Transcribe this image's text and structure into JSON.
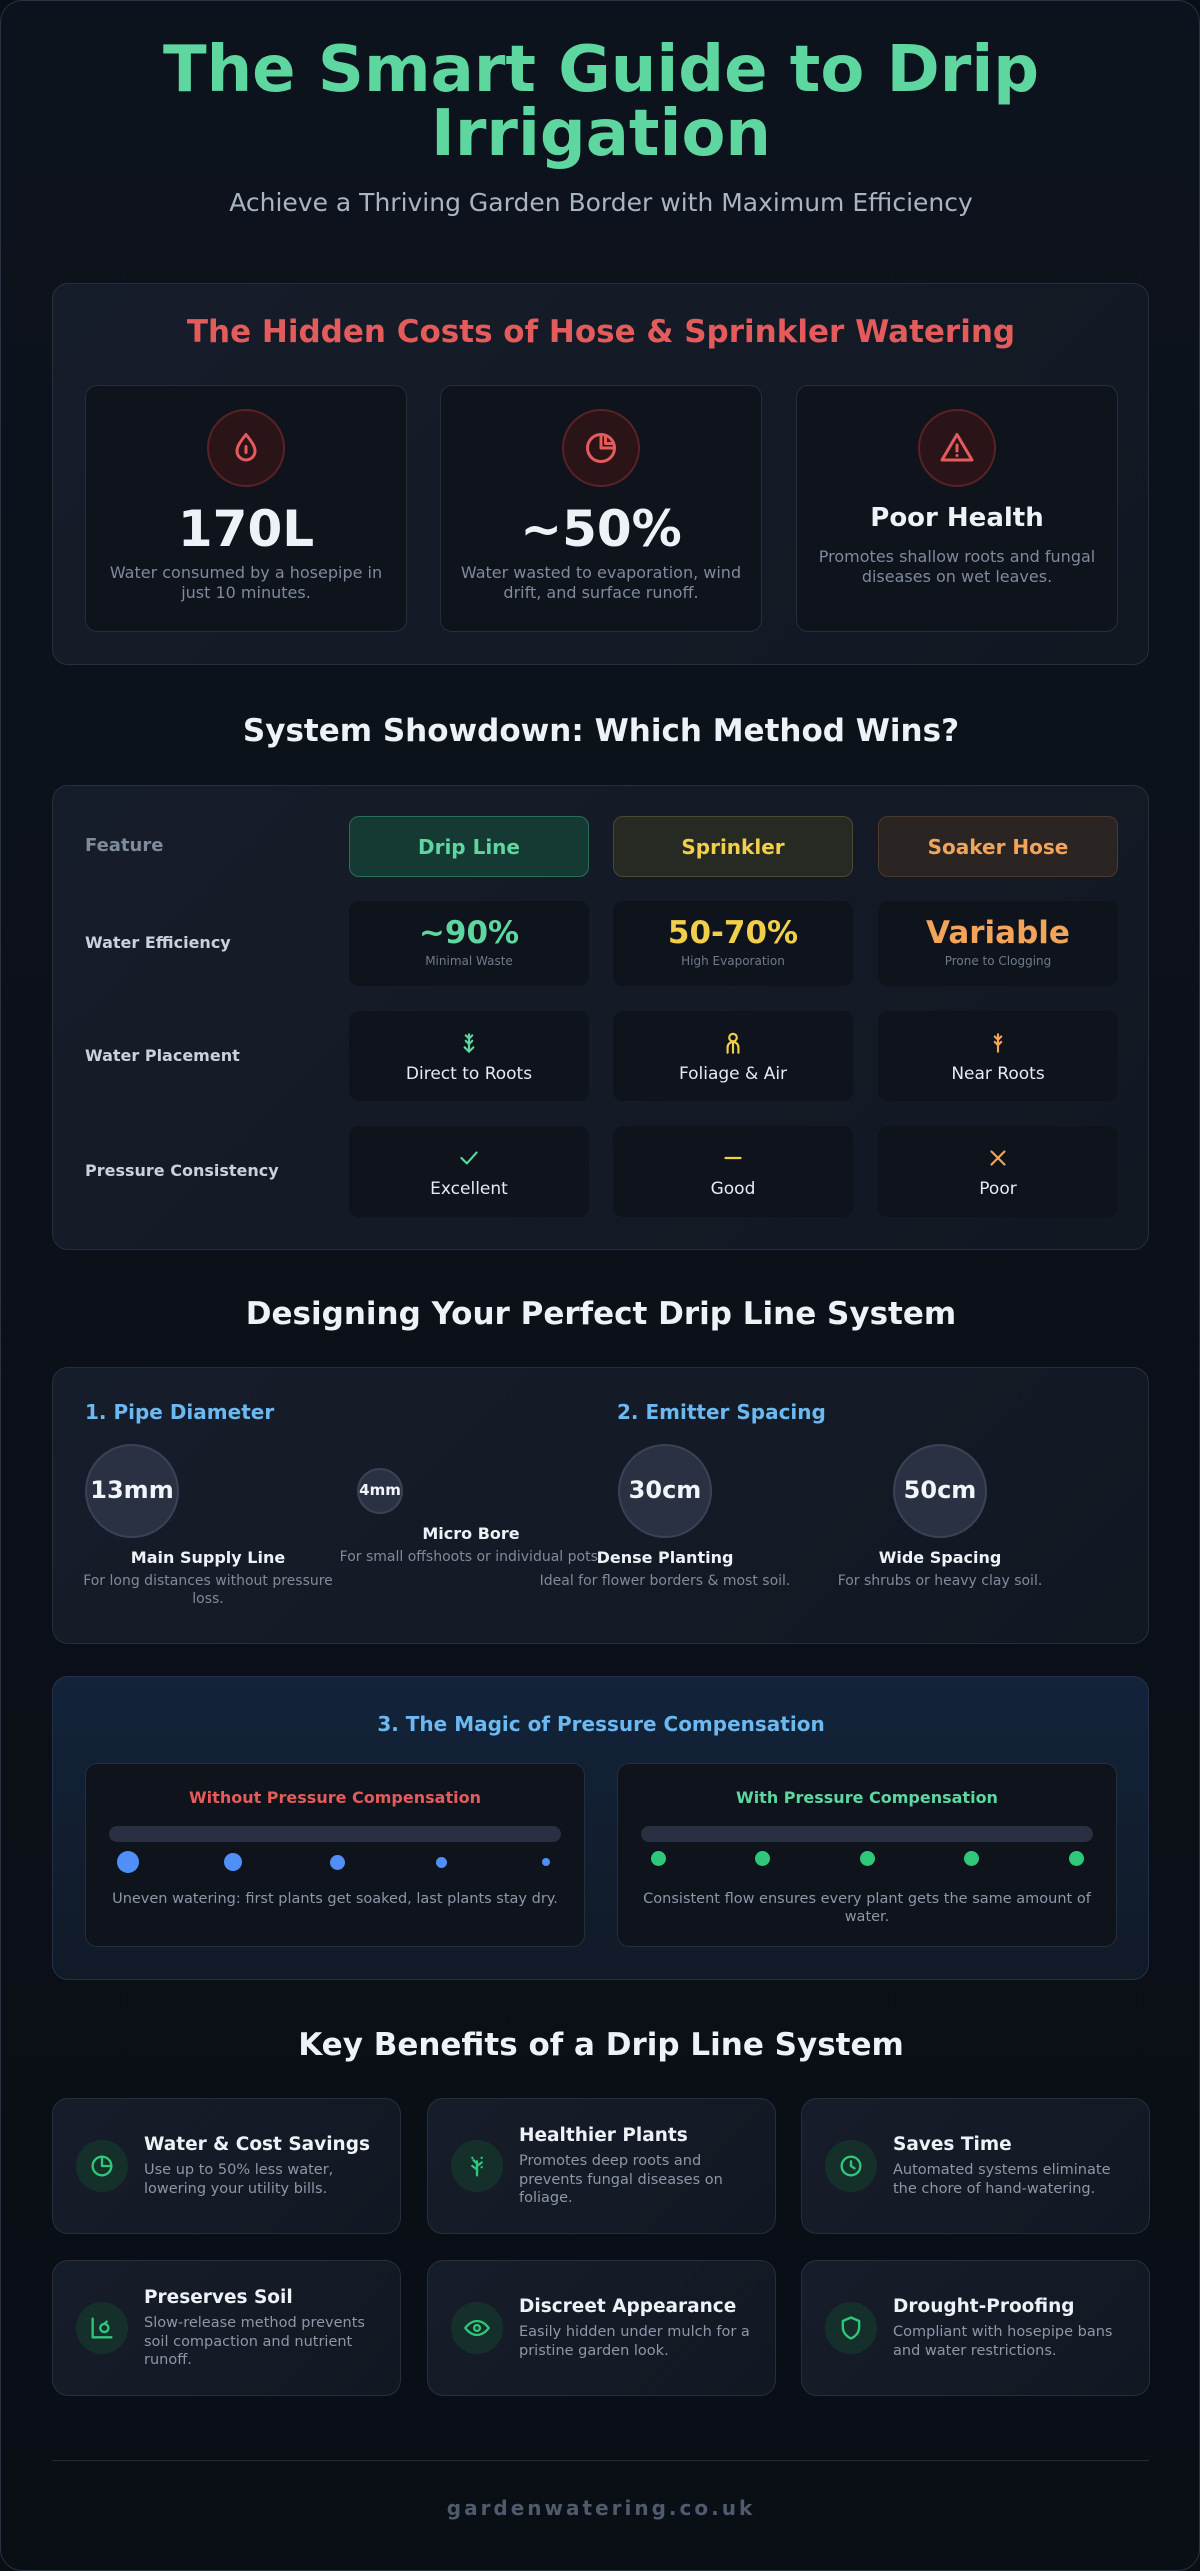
{
  "header": {
    "title": "The Smart Guide to Drip Irrigation",
    "subtitle": "Achieve a Thriving Garden Border with Maximum Efficiency"
  },
  "costs": {
    "title": "The Hidden Costs of Hose & Sprinkler Watering",
    "cards": [
      {
        "value": "170L",
        "text": "Water consumed by a hosepipe in just 10 minutes."
      },
      {
        "value": "~50%",
        "text": "Water wasted to evaporation, wind drift, and surface runoff."
      },
      {
        "value": "Poor Health",
        "text": "Promotes shallow roots and fungal diseases on wet leaves."
      }
    ]
  },
  "showdown": {
    "title": "System Showdown: Which Method Wins?",
    "feature_label": "Feature",
    "columns": [
      "Drip Line",
      "Sprinkler",
      "Soaker Hose"
    ],
    "rows": [
      {
        "label": "Water Efficiency",
        "cells": [
          {
            "value": "~90%",
            "note": "Minimal Waste"
          },
          {
            "value": "50-70%",
            "note": "High Evaporation"
          },
          {
            "value": "Variable",
            "note": "Prone to Clogging"
          }
        ]
      },
      {
        "label": "Water Placement",
        "cells": [
          {
            "text": "Direct to Roots"
          },
          {
            "text": "Foliage & Air"
          },
          {
            "text": "Near Roots"
          }
        ]
      },
      {
        "label": "Pressure Consistency",
        "cells": [
          {
            "text": "Excellent"
          },
          {
            "text": "Good"
          },
          {
            "text": "Poor"
          }
        ]
      }
    ]
  },
  "design": {
    "title": "Designing Your Perfect Drip Line System",
    "groups": [
      {
        "title": "1. Pipe Diameter",
        "items": [
          {
            "size": "13mm",
            "label": "Main Supply Line",
            "text": "For long distances without pressure loss."
          },
          {
            "size": "4mm",
            "label": "Micro Bore",
            "text": "For small offshoots or individual pots."
          }
        ]
      },
      {
        "title": "2. Emitter Spacing",
        "items": [
          {
            "size": "30cm",
            "label": "Dense Planting",
            "text": "Ideal for flower borders & most soil."
          },
          {
            "size": "50cm",
            "label": "Wide Spacing",
            "text": "For shrubs or heavy clay soil."
          }
        ]
      }
    ]
  },
  "pressure": {
    "title": "3. The Magic of Pressure Compensation",
    "panels": [
      {
        "title": "Without Pressure Compensation",
        "text": "Uneven watering: first plants get soaked, last plants stay dry."
      },
      {
        "title": "With Pressure Compensation",
        "text": "Consistent flow ensures every plant gets the same amount of water."
      }
    ]
  },
  "benefits": {
    "title": "Key Benefits of a Drip Line System",
    "items": [
      {
        "title": "Water & Cost Savings",
        "text": "Use up to 50% less water, lowering your utility bills."
      },
      {
        "title": "Healthier Plants",
        "text": "Promotes deep roots and prevents fungal diseases on foliage."
      },
      {
        "title": "Saves Time",
        "text": "Automated systems eliminate the chore of hand-watering."
      },
      {
        "title": "Preserves Soil",
        "text": "Slow-release method prevents soil compaction and nutrient runoff."
      },
      {
        "title": "Discreet Appearance",
        "text": "Easily hidden under mulch for a pristine garden look."
      },
      {
        "title": "Drought-Proofing",
        "text": "Compliant with hosepipe bans and water restrictions."
      }
    ]
  },
  "footer": "gardenwatering.co.uk"
}
